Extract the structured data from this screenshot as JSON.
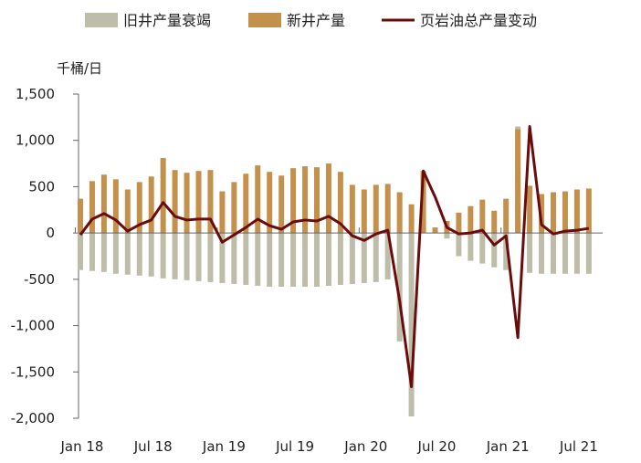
{
  "chart_data": {
    "type": "bar",
    "unit_label": "千桶/日",
    "legend_position": "top",
    "colors": {
      "old_decline": "#bdbdaa",
      "new_wells": "#c4914d",
      "total_change": "#6b0c0c",
      "axis": "#666666"
    },
    "x_tick_labels": [
      "Jan 18",
      "Jul 18",
      "Jan 19",
      "Jul 19",
      "Jan 20",
      "Jul 20",
      "Jan 21",
      "Jul 21"
    ],
    "x_tick_indices": [
      0,
      6,
      12,
      18,
      24,
      30,
      36,
      42
    ],
    "y_ticks": [
      1500,
      1000,
      500,
      0,
      -500,
      -1000,
      -1500,
      -2000
    ],
    "y_tick_labels": [
      "1,500",
      "1,000",
      "500",
      "0",
      "-500",
      "-1,000",
      "-1,500",
      "-2,000"
    ],
    "ylim": [
      -2000,
      1500
    ],
    "grid": false,
    "months": 44,
    "series": [
      {
        "name": "旧井产量衰竭",
        "kind": "bar",
        "values": [
          -400,
          -410,
          -420,
          -440,
          -450,
          -460,
          -470,
          -490,
          -500,
          -510,
          -520,
          -530,
          -540,
          -550,
          -560,
          -570,
          -580,
          -580,
          -580,
          -580,
          -580,
          -570,
          -560,
          -550,
          -540,
          -530,
          -500,
          -1170,
          -1980,
          70,
          40,
          -60,
          -250,
          -300,
          -330,
          -370,
          -400,
          1150,
          -430,
          -440,
          -440,
          -440,
          -440,
          -440
        ]
      },
      {
        "name": "新井产量",
        "kind": "bar",
        "values": [
          370,
          560,
          630,
          580,
          470,
          550,
          610,
          810,
          680,
          650,
          670,
          680,
          450,
          550,
          640,
          730,
          660,
          620,
          700,
          720,
          710,
          750,
          660,
          520,
          470,
          520,
          530,
          440,
          310,
          670,
          60,
          130,
          220,
          290,
          360,
          240,
          370,
          1120,
          510,
          420,
          440,
          450,
          470,
          480
        ]
      },
      {
        "name": "页岩油总产量变动",
        "kind": "line",
        "values": [
          -20,
          150,
          210,
          140,
          20,
          90,
          140,
          330,
          180,
          140,
          150,
          150,
          -100,
          -20,
          60,
          150,
          80,
          40,
          120,
          140,
          130,
          180,
          100,
          -30,
          -80,
          -10,
          30,
          -730,
          -1660,
          670,
          390,
          60,
          -10,
          0,
          30,
          -130,
          -30,
          -1130,
          1150,
          90,
          -10,
          20,
          30,
          50
        ]
      }
    ]
  }
}
